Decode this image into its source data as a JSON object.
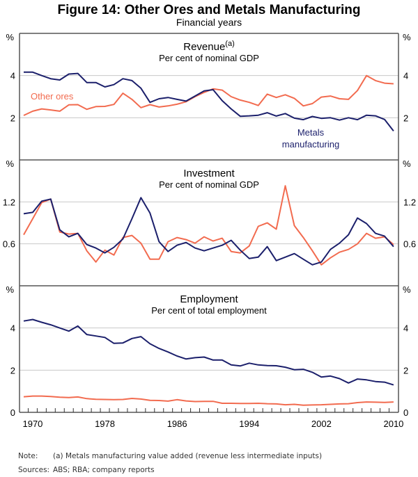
{
  "title": "Figure 14: Other Ores and Metals Manufacturing",
  "subtitle": "Financial years",
  "notes": {
    "note_label": "Note:",
    "note_text": "(a) Metals manufacturing value added (revenue less intermediate inputs)",
    "sources_label": "Sources:",
    "sources_text": "ABS; RBA; company reports"
  },
  "colors": {
    "other_ores": "#f26b4f",
    "metals": "#1b1f6b",
    "grid": "#c8c8c8",
    "axis": "#555555"
  },
  "chart_data": [
    {
      "type": "line",
      "title": "Revenue",
      "title_superscript": "(a)",
      "subtitle": "Per cent of nominal GDP",
      "ylabel": "%",
      "ylim": [
        0,
        6
      ],
      "yticks": [
        2,
        4
      ],
      "grid": true,
      "x": [
        1969,
        1970,
        1971,
        1972,
        1973,
        1974,
        1975,
        1976,
        1977,
        1978,
        1979,
        1980,
        1981,
        1982,
        1983,
        1984,
        1985,
        1986,
        1987,
        1988,
        1989,
        1990,
        1991,
        1992,
        1993,
        1994,
        1995,
        1996,
        1997,
        1998,
        1999,
        2000,
        2001,
        2002,
        2003,
        2004,
        2005,
        2006,
        2007,
        2008,
        2009,
        2010
      ],
      "series": [
        {
          "name": "Other ores",
          "label_lines": [
            "Other ores"
          ],
          "color": "#f26b4f",
          "values": [
            2.11,
            2.31,
            2.42,
            2.37,
            2.31,
            2.61,
            2.62,
            2.4,
            2.53,
            2.54,
            2.63,
            3.16,
            2.87,
            2.48,
            2.62,
            2.51,
            2.56,
            2.64,
            2.76,
            3.0,
            3.2,
            3.37,
            3.31,
            3.0,
            2.84,
            2.73,
            2.58,
            3.12,
            2.96,
            3.09,
            2.92,
            2.56,
            2.67,
            2.98,
            3.03,
            2.9,
            2.87,
            3.29,
            4.0,
            3.76,
            3.64,
            3.61
          ]
        },
        {
          "name": "Metals manufacturing",
          "label_lines": [
            "Metals",
            "manufacturing"
          ],
          "color": "#1b1f6b",
          "values": [
            4.16,
            4.16,
            4.0,
            3.85,
            3.79,
            4.07,
            4.1,
            3.67,
            3.67,
            3.46,
            3.57,
            3.85,
            3.76,
            3.4,
            2.73,
            2.9,
            2.96,
            2.87,
            2.79,
            3.03,
            3.27,
            3.33,
            2.81,
            2.42,
            2.07,
            2.09,
            2.12,
            2.24,
            2.08,
            2.2,
            1.98,
            1.91,
            2.06,
            1.97,
            2.0,
            1.89,
            2.0,
            1.91,
            2.12,
            2.09,
            1.92,
            1.37
          ]
        }
      ]
    },
    {
      "type": "line",
      "title": "Investment",
      "subtitle": "Per cent of nominal GDP",
      "ylabel": "%",
      "ylim": [
        0,
        1.8
      ],
      "yticks": [
        0.6,
        1.2
      ],
      "grid": true,
      "x": [
        1969,
        1970,
        1971,
        1972,
        1973,
        1974,
        1975,
        1976,
        1977,
        1978,
        1979,
        1980,
        1981,
        1982,
        1983,
        1984,
        1985,
        1986,
        1987,
        1988,
        1989,
        1990,
        1991,
        1992,
        1993,
        1994,
        1995,
        1996,
        1997,
        1998,
        1999,
        2000,
        2001,
        2002,
        2003,
        2004,
        2005,
        2006,
        2007,
        2008,
        2009,
        2010
      ],
      "series": [
        {
          "name": "Other ores",
          "color": "#f26b4f",
          "values": [
            0.73,
            0.96,
            1.19,
            1.24,
            0.77,
            0.74,
            0.75,
            0.5,
            0.34,
            0.51,
            0.44,
            0.69,
            0.72,
            0.61,
            0.38,
            0.38,
            0.63,
            0.69,
            0.66,
            0.61,
            0.7,
            0.64,
            0.68,
            0.49,
            0.47,
            0.57,
            0.85,
            0.9,
            0.81,
            1.43,
            0.86,
            0.69,
            0.5,
            0.3,
            0.4,
            0.48,
            0.52,
            0.6,
            0.75,
            0.68,
            0.7,
            0.59
          ]
        },
        {
          "name": "Metals manufacturing",
          "color": "#1b1f6b",
          "values": [
            1.03,
            1.05,
            1.21,
            1.24,
            0.8,
            0.7,
            0.75,
            0.59,
            0.54,
            0.47,
            0.55,
            0.67,
            0.96,
            1.26,
            1.04,
            0.63,
            0.49,
            0.58,
            0.62,
            0.54,
            0.5,
            0.54,
            0.58,
            0.65,
            0.51,
            0.39,
            0.41,
            0.56,
            0.36,
            0.41,
            0.46,
            0.38,
            0.3,
            0.34,
            0.52,
            0.61,
            0.73,
            0.97,
            0.89,
            0.75,
            0.71,
            0.56
          ]
        }
      ]
    },
    {
      "type": "line",
      "title": "Employment",
      "subtitle": "Per cent of total employment",
      "ylabel": "%",
      "ylim": [
        0,
        6
      ],
      "yticks": [
        0,
        2,
        4
      ],
      "grid": true,
      "x": [
        1969,
        1970,
        1971,
        1972,
        1973,
        1974,
        1975,
        1976,
        1977,
        1978,
        1979,
        1980,
        1981,
        1982,
        1983,
        1984,
        1985,
        1986,
        1987,
        1988,
        1989,
        1990,
        1991,
        1992,
        1993,
        1994,
        1995,
        1996,
        1997,
        1998,
        1999,
        2000,
        2001,
        2002,
        2003,
        2004,
        2005,
        2006,
        2007,
        2008,
        2009,
        2010
      ],
      "xtick_labels": [
        "1970",
        "1978",
        "1986",
        "1994",
        "2002",
        "2010"
      ],
      "series": [
        {
          "name": "Other ores",
          "color": "#f26b4f",
          "values": [
            0.74,
            0.77,
            0.77,
            0.75,
            0.72,
            0.7,
            0.73,
            0.65,
            0.62,
            0.61,
            0.6,
            0.61,
            0.66,
            0.63,
            0.57,
            0.56,
            0.53,
            0.6,
            0.54,
            0.51,
            0.52,
            0.52,
            0.43,
            0.43,
            0.42,
            0.42,
            0.43,
            0.41,
            0.4,
            0.36,
            0.38,
            0.34,
            0.35,
            0.36,
            0.38,
            0.4,
            0.41,
            0.46,
            0.49,
            0.48,
            0.47,
            0.49
          ]
        },
        {
          "name": "Metals manufacturing",
          "color": "#1b1f6b",
          "values": [
            4.33,
            4.4,
            4.27,
            4.15,
            4.0,
            3.85,
            4.09,
            3.69,
            3.62,
            3.55,
            3.27,
            3.29,
            3.5,
            3.59,
            3.25,
            3.03,
            2.86,
            2.67,
            2.53,
            2.59,
            2.62,
            2.48,
            2.48,
            2.25,
            2.2,
            2.33,
            2.25,
            2.22,
            2.21,
            2.14,
            2.02,
            2.04,
            1.9,
            1.67,
            1.72,
            1.6,
            1.39,
            1.58,
            1.54,
            1.46,
            1.43,
            1.3
          ]
        }
      ]
    }
  ]
}
